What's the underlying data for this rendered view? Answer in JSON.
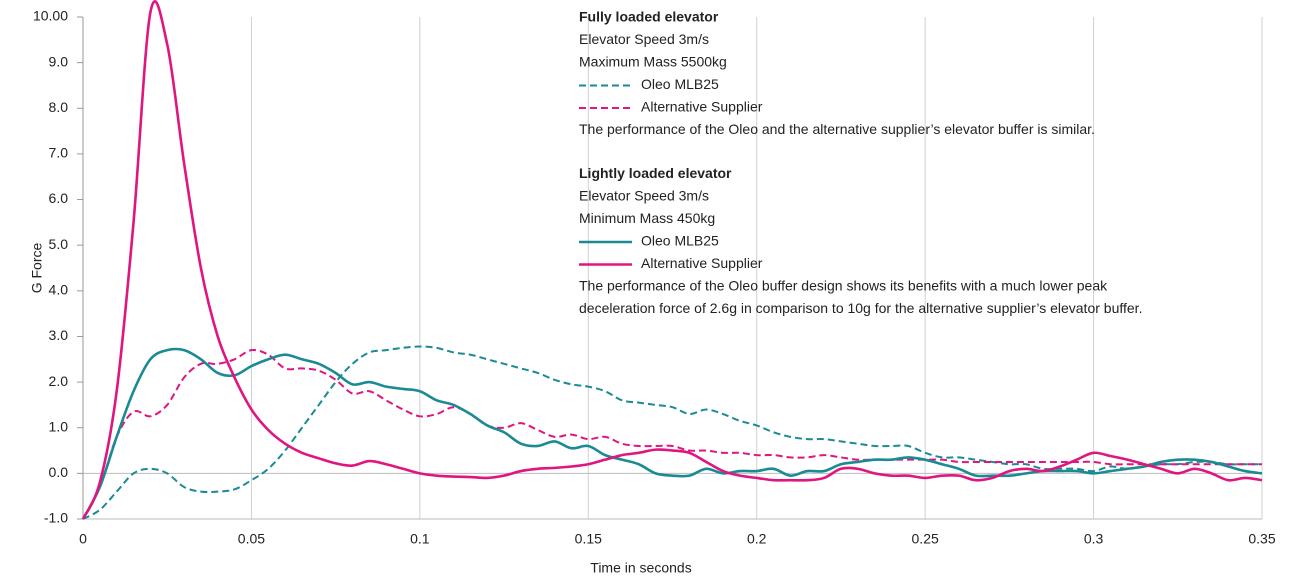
{
  "chart_data": {
    "type": "line",
    "xlabel": "Time in seconds",
    "ylabel": "G Force",
    "xlim": [
      0,
      0.35
    ],
    "ylim": [
      -1,
      10
    ],
    "xticks": [
      0,
      0.05,
      0.1,
      0.15,
      0.2,
      0.25,
      0.3,
      0.35
    ],
    "yticks": [
      {
        "value": -1,
        "label": "-1.0"
      },
      {
        "value": 0,
        "label": "0.0"
      },
      {
        "value": 1,
        "label": "1.0"
      },
      {
        "value": 2,
        "label": "2.0"
      },
      {
        "value": 3,
        "label": "3.0"
      },
      {
        "value": 4,
        "label": "4.0"
      },
      {
        "value": 5,
        "label": "5.0"
      },
      {
        "value": 6,
        "label": "6.0"
      },
      {
        "value": 7,
        "label": "7.0"
      },
      {
        "value": 8,
        "label": "8.0"
      },
      {
        "value": 9,
        "label": "9.0"
      },
      {
        "value": 10,
        "label": "10.00"
      }
    ],
    "grid": true,
    "x": [
      0,
      0.005,
      0.01,
      0.015,
      0.02,
      0.025,
      0.03,
      0.035,
      0.04,
      0.045,
      0.05,
      0.055,
      0.06,
      0.065,
      0.07,
      0.075,
      0.08,
      0.085,
      0.09,
      0.095,
      0.1,
      0.105,
      0.11,
      0.115,
      0.12,
      0.125,
      0.13,
      0.135,
      0.14,
      0.145,
      0.15,
      0.155,
      0.16,
      0.165,
      0.17,
      0.175,
      0.18,
      0.185,
      0.19,
      0.195,
      0.2,
      0.205,
      0.21,
      0.215,
      0.22,
      0.225,
      0.23,
      0.235,
      0.24,
      0.245,
      0.25,
      0.255,
      0.26,
      0.265,
      0.27,
      0.275,
      0.28,
      0.285,
      0.29,
      0.295,
      0.3,
      0.305,
      0.31,
      0.315,
      0.32,
      0.325,
      0.33,
      0.335,
      0.34,
      0.345,
      0.35
    ],
    "series": [
      {
        "name": "Oleo MLB25",
        "color": "#1a8a94",
        "line_style": "dashed",
        "values": [
          -1,
          -0.8,
          -0.4,
          0,
          0.1,
          0,
          -0.3,
          -0.4,
          -0.4,
          -0.35,
          -0.15,
          0.1,
          0.5,
          1,
          1.5,
          2,
          2.4,
          2.65,
          2.7,
          2.75,
          2.78,
          2.75,
          2.65,
          2.6,
          2.5,
          2.4,
          2.3,
          2.2,
          2.05,
          1.95,
          1.9,
          1.8,
          1.6,
          1.55,
          1.5,
          1.45,
          1.3,
          1.4,
          1.3,
          1.15,
          1.05,
          0.9,
          0.8,
          0.75,
          0.75,
          0.7,
          0.65,
          0.6,
          0.6,
          0.6,
          0.45,
          0.35,
          0.35,
          0.3,
          0.25,
          0.2,
          0.2,
          0.1,
          0.1,
          0.1,
          0.05,
          0.15,
          0.1,
          0.15,
          0.2,
          0.2,
          0.25,
          0.25,
          0.2,
          0.2,
          0.2
        ]
      },
      {
        "name": "Alternative Supplier",
        "color": "#e0157f",
        "line_style": "dashed",
        "values": [
          -1,
          -0.3,
          0.8,
          1.35,
          1.25,
          1.5,
          2.1,
          2.4,
          2.4,
          2.5,
          2.7,
          2.6,
          2.3,
          2.3,
          2.25,
          2.05,
          1.75,
          1.8,
          1.6,
          1.4,
          1.25,
          1.3,
          1.45,
          1.3,
          1.05,
          1,
          1.1,
          0.95,
          0.8,
          0.85,
          0.75,
          0.8,
          0.65,
          0.6,
          0.6,
          0.6,
          0.5,
          0.5,
          0.45,
          0.45,
          0.4,
          0.4,
          0.35,
          0.35,
          0.4,
          0.35,
          0.3,
          0.3,
          0.3,
          0.3,
          0.3,
          0.3,
          0.25,
          0.25,
          0.25,
          0.25,
          0.25,
          0.25,
          0.25,
          0.25,
          0.25,
          0.2,
          0.2,
          0.2,
          0.2,
          0.2,
          0.2,
          0.2,
          0.2,
          0.2,
          0.2
        ]
      },
      {
        "name": "Oleo MLB25",
        "color": "#1a8a94",
        "line_style": "solid",
        "values": [
          -1,
          -0.3,
          0.8,
          1.8,
          2.5,
          2.7,
          2.7,
          2.5,
          2.2,
          2.15,
          2.35,
          2.5,
          2.6,
          2.5,
          2.4,
          2.2,
          1.95,
          2,
          1.9,
          1.85,
          1.8,
          1.6,
          1.5,
          1.3,
          1.05,
          0.9,
          0.65,
          0.6,
          0.7,
          0.55,
          0.6,
          0.4,
          0.3,
          0.2,
          0,
          -0.05,
          -0.05,
          0.1,
          0,
          0.05,
          0.05,
          0.1,
          -0.05,
          0.05,
          0.05,
          0.2,
          0.25,
          0.3,
          0.3,
          0.35,
          0.3,
          0.2,
          0.1,
          -0.05,
          -0.05,
          -0.05,
          0,
          0.05,
          0.05,
          0.05,
          0,
          0.05,
          0.1,
          0.15,
          0.25,
          0.3,
          0.3,
          0.25,
          0.15,
          0.05,
          0
        ]
      },
      {
        "name": "Alternative Supplier",
        "color": "#e0157f",
        "line_style": "solid",
        "values": [
          -1,
          -0.2,
          1.8,
          5.5,
          10.1,
          9.4,
          6.8,
          4.5,
          3,
          2.1,
          1.4,
          0.95,
          0.65,
          0.45,
          0.33,
          0.22,
          0.17,
          0.27,
          0.2,
          0.1,
          0,
          -0.05,
          -0.07,
          -0.08,
          -0.1,
          -0.05,
          0.05,
          0.1,
          0.12,
          0.15,
          0.2,
          0.3,
          0.4,
          0.45,
          0.52,
          0.5,
          0.45,
          0.25,
          0.05,
          -0.05,
          -0.1,
          -0.15,
          -0.15,
          -0.15,
          -0.1,
          0.1,
          0.1,
          0,
          -0.05,
          -0.05,
          -0.1,
          -0.05,
          -0.05,
          -0.15,
          -0.1,
          0.05,
          0.1,
          0.05,
          0.15,
          0.3,
          0.45,
          0.38,
          0.3,
          0.2,
          0.1,
          0,
          0.1,
          0,
          -0.15,
          -0.1,
          -0.15
        ]
      }
    ],
    "legend_groups": [
      {
        "title": "Fully loaded elevator",
        "line_style": "dashed",
        "lines": [
          "Elevator Speed   3m/s",
          "Maximum Mass  5500kg"
        ],
        "note": [
          "The performance of the Oleo and the alternative supplier’s elevator buffer is similar."
        ]
      },
      {
        "title": "Lightly loaded elevator",
        "line_style": "solid",
        "lines": [
          "Elevator Speed   3m/s",
          "Minimum Mass   450kg"
        ],
        "note": [
          "The performance of the Oleo buffer design shows its benefits with a much lower peak",
          "deceleration force of 2.6g in comparison to 10g for the alternative supplier’s elevator buffer."
        ]
      }
    ]
  }
}
